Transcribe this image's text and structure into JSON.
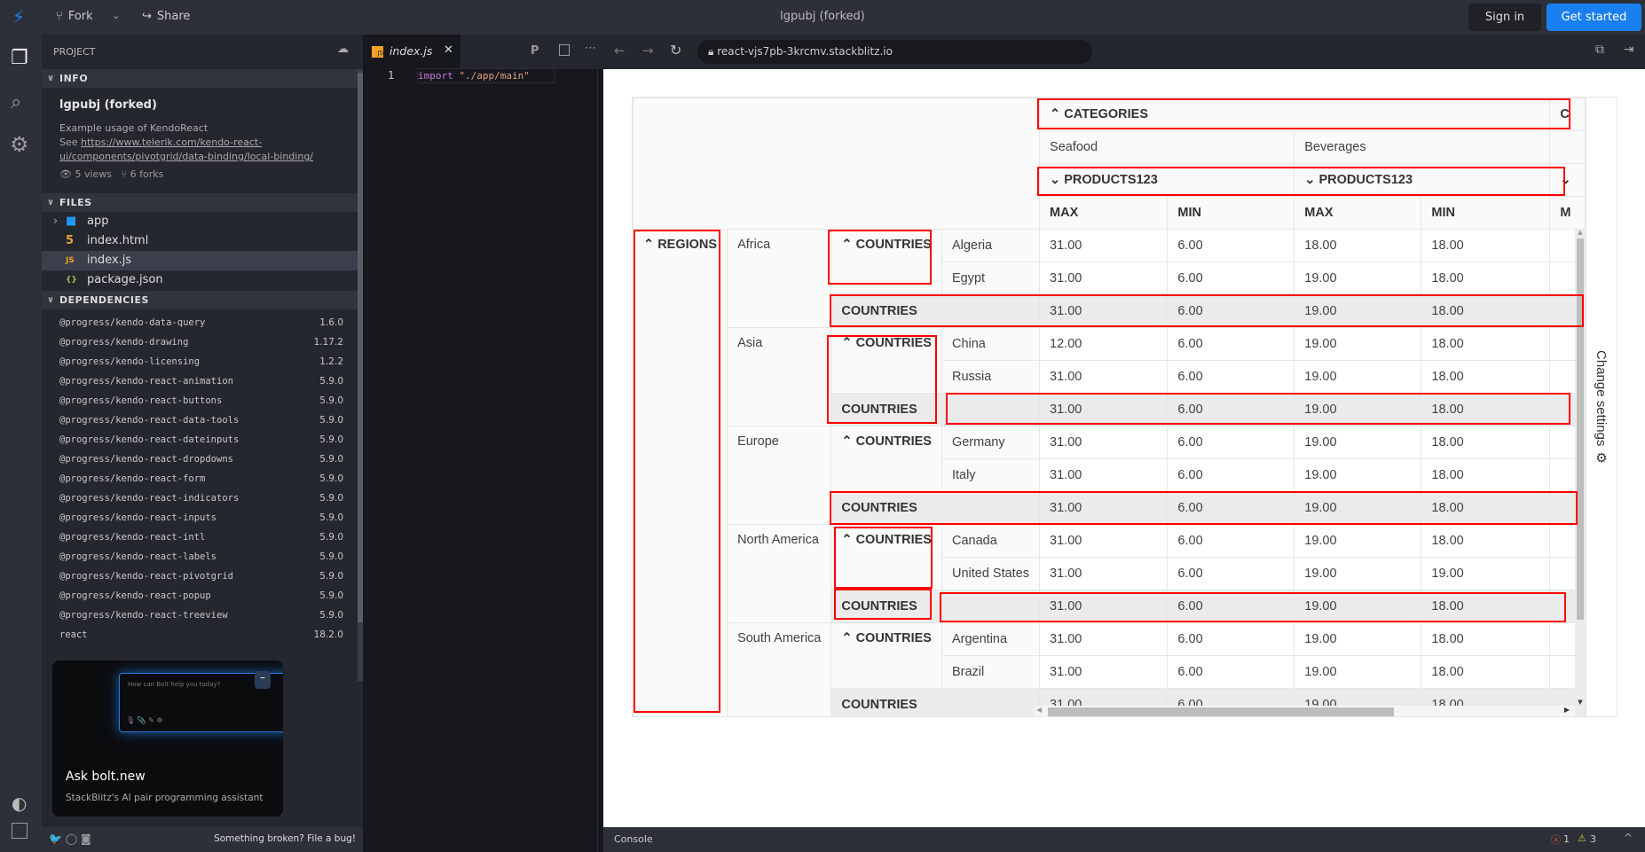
{
  "topbar": {
    "fork": "Fork",
    "share": "Share",
    "title": "lgpubj (forked)",
    "sign_in": "Sign in",
    "get_started": "Get started",
    "accent": "#1a7ff0"
  },
  "sidebar": {
    "project": "PROJECT",
    "info_header": "INFO",
    "project_title": "lgpubj (forked)",
    "description": "Example usage of KendoReact",
    "see": "See ",
    "link1": "https://www.telerik.com/kendo-react-",
    "link2": "ui/components/pivotgrid/data-binding/local-binding/",
    "views": "5 views",
    "forks": "6 forks",
    "files_header": "FILES",
    "files": [
      {
        "name": "app",
        "icon": "folder-icon"
      },
      {
        "name": "index.html",
        "icon": "html5-icon"
      },
      {
        "name": "index.js",
        "icon": "js-icon",
        "selected": true
      },
      {
        "name": "package.json",
        "icon": "json-icon"
      }
    ],
    "deps_header": "DEPENDENCIES",
    "deps": [
      {
        "n": "@progress/kendo-data-query",
        "v": "1.6.0"
      },
      {
        "n": "@progress/kendo-drawing",
        "v": "1.17.2"
      },
      {
        "n": "@progress/kendo-licensing",
        "v": "1.2.2"
      },
      {
        "n": "@progress/kendo-react-animation",
        "v": "5.9.0"
      },
      {
        "n": "@progress/kendo-react-buttons",
        "v": "5.9.0"
      },
      {
        "n": "@progress/kendo-react-data-tools",
        "v": "5.9.0"
      },
      {
        "n": "@progress/kendo-react-dateinputs",
        "v": "5.9.0"
      },
      {
        "n": "@progress/kendo-react-dropdowns",
        "v": "5.9.0"
      },
      {
        "n": "@progress/kendo-react-form",
        "v": "5.9.0"
      },
      {
        "n": "@progress/kendo-react-indicators",
        "v": "5.9.0"
      },
      {
        "n": "@progress/kendo-react-inputs",
        "v": "5.9.0"
      },
      {
        "n": "@progress/kendo-react-intl",
        "v": "5.9.0"
      },
      {
        "n": "@progress/kendo-react-labels",
        "v": "5.9.0"
      },
      {
        "n": "@progress/kendo-react-pivotgrid",
        "v": "5.9.0"
      },
      {
        "n": "@progress/kendo-react-popup",
        "v": "5.9.0"
      },
      {
        "n": "@progress/kendo-react-treeview",
        "v": "5.9.0"
      },
      {
        "n": "react",
        "v": "18.2.0"
      }
    ],
    "bolt": {
      "prompt": "How can Bolt help you today?",
      "title": "Ask bolt.new",
      "subtitle": "StackBlitz's AI pair programming assistant"
    },
    "footer": "Something broken? File a bug!"
  },
  "editor": {
    "tab": "index.js",
    "line": "1",
    "code_kw": "import",
    "code_str": " \"./app/main\""
  },
  "browser": {
    "url": "react-vjs7pb-3krcmv.stackblitz.io"
  },
  "pivot": {
    "categories": "CATEGORIES",
    "cat_partial": "C",
    "seafood": "Seafood",
    "beverages": "Beverages",
    "products": "PRODUCTS123",
    "measures": [
      "MAX",
      "MIN",
      "MAX",
      "MIN"
    ],
    "m_partial": "M",
    "regions": "REGIONS",
    "countries": "COUNTRIES",
    "rows": [
      {
        "region": "Africa",
        "countries": [
          {
            "name": "Algeria",
            "values": [
              "31.00",
              "6.00",
              "18.00",
              "18.00"
            ]
          },
          {
            "name": "Egypt",
            "values": [
              "31.00",
              "6.00",
              "19.00",
              "18.00"
            ]
          }
        ],
        "total": [
          "31.00",
          "6.00",
          "19.00",
          "18.00"
        ]
      },
      {
        "region": "Asia",
        "countries": [
          {
            "name": "China",
            "values": [
              "12.00",
              "6.00",
              "19.00",
              "18.00"
            ]
          },
          {
            "name": "Russia",
            "values": [
              "31.00",
              "6.00",
              "19.00",
              "18.00"
            ]
          }
        ],
        "total": [
          "31.00",
          "6.00",
          "19.00",
          "18.00"
        ]
      },
      {
        "region": "Europe",
        "countries": [
          {
            "name": "Germany",
            "values": [
              "31.00",
              "6.00",
              "19.00",
              "18.00"
            ]
          },
          {
            "name": "Italy",
            "values": [
              "31.00",
              "6.00",
              "19.00",
              "18.00"
            ]
          }
        ],
        "total": [
          "31.00",
          "6.00",
          "19.00",
          "18.00"
        ]
      },
      {
        "region": "North America",
        "countries": [
          {
            "name": "Canada",
            "values": [
              "31.00",
              "6.00",
              "19.00",
              "18.00"
            ]
          },
          {
            "name": "United States",
            "values": [
              "31.00",
              "6.00",
              "19.00",
              "19.00"
            ]
          }
        ],
        "total": [
          "31.00",
          "6.00",
          "19.00",
          "18.00"
        ]
      },
      {
        "region": "South America",
        "countries": [
          {
            "name": "Argentina",
            "values": [
              "31.00",
              "6.00",
              "19.00",
              "18.00"
            ]
          },
          {
            "name": "Brazil",
            "values": [
              "31.00",
              "6.00",
              "19.00",
              "18.00"
            ]
          }
        ],
        "total": [
          "31.00",
          "6.00",
          "19.00",
          "18.00"
        ]
      }
    ],
    "settings": "Change settings"
  },
  "console": {
    "label": "Console",
    "errors": "1",
    "warnings": "3"
  }
}
